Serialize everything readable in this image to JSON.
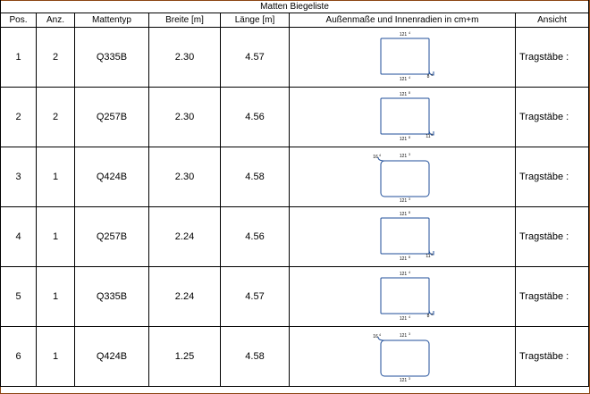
{
  "title": "Matten Biegeliste",
  "headers": [
    "Pos.",
    "Anz.",
    "Mattentyp",
    "Breite [m]",
    "Länge [m]",
    "Außenmaße und Innenradien in cm+m",
    "Ansicht"
  ],
  "rows": [
    {
      "pos": "1",
      "anz": "2",
      "typ": "Q335B",
      "breite": "2.30",
      "laenge": "4.57",
      "ansicht": "Tragstäbe :",
      "sketch": {
        "top": "121",
        "top_sup": "4",
        "bottom": "121",
        "bottom_sup": "4",
        "left": "̲̲",
        "right": "̲̲",
        "hook": "8",
        "hook_sup": "4",
        "variant": "hook-right"
      }
    },
    {
      "pos": "2",
      "anz": "2",
      "typ": "Q257B",
      "breite": "2.30",
      "laenge": "4.56",
      "ansicht": "Tragstäbe :",
      "sketch": {
        "top": "121",
        "top_sup": "8",
        "bottom": "121",
        "bottom_sup": "8",
        "hook": "11",
        "hook_sup": "3",
        "variant": "hook-right"
      }
    },
    {
      "pos": "3",
      "anz": "1",
      "typ": "Q424B",
      "breite": "2.30",
      "laenge": "4.58",
      "ansicht": "Tragstäbe :",
      "sketch": {
        "top": "121",
        "top_sup": "3",
        "bottom": "121",
        "bottom_sup": "3",
        "hook": "16",
        "hook_sup": "4",
        "variant": "hook-left"
      }
    },
    {
      "pos": "4",
      "anz": "1",
      "typ": "Q257B",
      "breite": "2.24",
      "laenge": "4.56",
      "ansicht": "Tragstäbe :",
      "sketch": {
        "top": "121",
        "top_sup": "8",
        "bottom": "121",
        "bottom_sup": "8",
        "hook": "11",
        "hook_sup": "3",
        "variant": "hook-right"
      }
    },
    {
      "pos": "5",
      "anz": "1",
      "typ": "Q335B",
      "breite": "2.24",
      "laenge": "4.57",
      "ansicht": "Tragstäbe :",
      "sketch": {
        "top": "121",
        "top_sup": "4",
        "bottom": "121",
        "bottom_sup": "4",
        "hook": "8",
        "hook_sup": "4",
        "variant": "hook-right"
      }
    },
    {
      "pos": "6",
      "anz": "1",
      "typ": "Q424B",
      "breite": "1.25",
      "laenge": "4.58",
      "ansicht": "Tragstäbe :",
      "sketch": {
        "top": "121",
        "top_sup": "3",
        "bottom": "121",
        "bottom_sup": "3",
        "hook": "16",
        "hook_sup": "4",
        "variant": "hook-left"
      }
    }
  ],
  "colors": {
    "frame": "#8b4513",
    "sketch_line": "#1f4e99",
    "grid": "#000000"
  }
}
